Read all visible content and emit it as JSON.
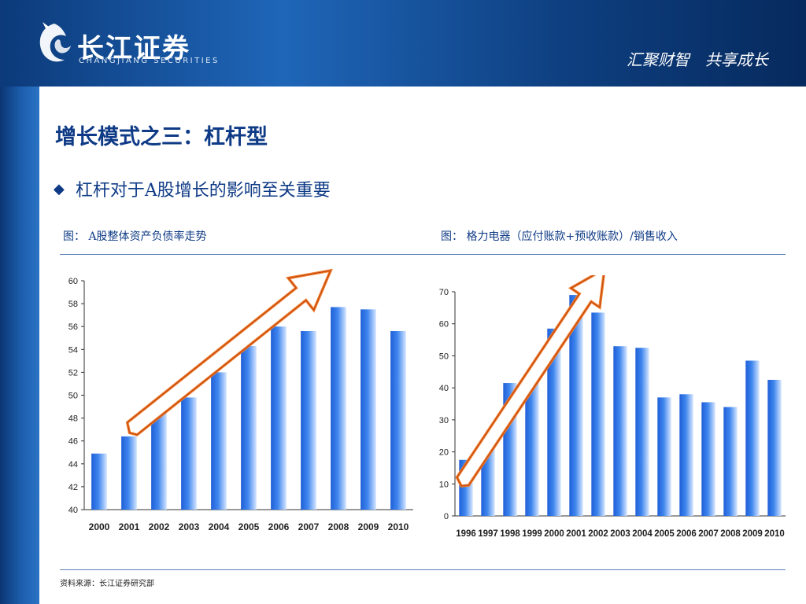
{
  "header": {
    "logo_cn": "长江证券",
    "logo_en": "CHANGJIANG SECURITIES",
    "slogan": "汇聚财智　共享成长"
  },
  "slide": {
    "title": "增长模式之三：杠杆型",
    "bullet_symbol": "◆",
    "bullet": "杠杆对于A股增长的影响至关重要",
    "source": "资料来源：长江证券研究部"
  },
  "charts": {
    "left_caption": "图：  A股整体资产负债率走势",
    "right_caption": "图：  格力电器（应付账款+预收账款）/销售收入"
  },
  "chart_data": [
    {
      "type": "bar",
      "title": "",
      "categories": [
        "2000",
        "2001",
        "2002",
        "2003",
        "2004",
        "2005",
        "2006",
        "2007",
        "2008",
        "2009",
        "2010"
      ],
      "values": [
        44.9,
        46.4,
        48.8,
        49.8,
        52.0,
        54.3,
        56.0,
        55.6,
        57.7,
        57.5,
        55.6
      ],
      "ylim": [
        40,
        60
      ],
      "yticks": [
        "40",
        "42",
        "44",
        "46",
        "48",
        "50",
        "52",
        "54",
        "56",
        "58",
        "60"
      ],
      "grid": false,
      "annotation": "orange-up-arrow",
      "colors": {
        "bar": "#3f86ee",
        "arrow": "#e8621a"
      }
    },
    {
      "type": "bar",
      "title": "",
      "categories": [
        "1996",
        "1997",
        "1998",
        "1999",
        "2000",
        "2001",
        "2002",
        "2003",
        "2004",
        "2005",
        "2006",
        "2007",
        "2008",
        "2009",
        "2010"
      ],
      "values": [
        17.5,
        21.0,
        41.5,
        44.5,
        58.5,
        69.0,
        63.5,
        53.0,
        52.5,
        37.0,
        38.0,
        35.5,
        34.0,
        48.5,
        42.5
      ],
      "ylim": [
        0,
        70
      ],
      "yticks": [
        "0",
        "10",
        "20",
        "30",
        "40",
        "50",
        "60",
        "70"
      ],
      "grid": false,
      "annotation": "orange-up-arrow",
      "colors": {
        "bar": "#3f86ee",
        "arrow": "#e8621a"
      }
    }
  ]
}
